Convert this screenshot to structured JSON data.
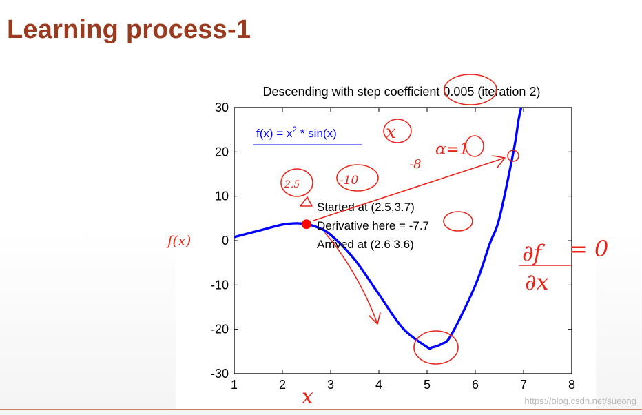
{
  "slide": {
    "title": "Learning process-1",
    "watermark": "https://blog.csdn.net/sueong"
  },
  "chart_data": {
    "type": "line",
    "title": "Descending with step coefficient 0.005 (iteration 2)",
    "xlim": [
      1,
      8
    ],
    "ylim": [
      -30,
      30
    ],
    "xticks": [
      1,
      2,
      3,
      4,
      5,
      6,
      7,
      8
    ],
    "yticks": [
      -30,
      -20,
      -10,
      0,
      10,
      20,
      30
    ],
    "grid": false,
    "series": [
      {
        "name": "f(x) = x² * sin(x)",
        "color": "#0000ff",
        "x": [
          1.0,
          1.5,
          2.0,
          2.3,
          2.5,
          2.7,
          3.0,
          3.5,
          4.0,
          4.5,
          5.0,
          5.1,
          5.3,
          5.5,
          6.0,
          6.3,
          6.5,
          6.8,
          6.9,
          7.0
        ],
        "y": [
          0.8,
          2.2,
          3.6,
          3.9,
          3.7,
          3.1,
          1.3,
          -4.3,
          -12.1,
          -19.8,
          -24.0,
          -24.1,
          -23.3,
          -21.3,
          -10.1,
          -0.7,
          5.1,
          20.5,
          27.4,
          32.2
        ]
      }
    ],
    "legend_text": {
      "prefix": "f(x) = x",
      "sup": "2",
      "suffix": " * sin(x)"
    },
    "point": {
      "x": 2.5,
      "y": 3.7,
      "color": "#ff0000"
    },
    "annotations": [
      "Started at (2.5,3.7)",
      "Derivative here = -7.7",
      "Arrived at (2.6 3.6)"
    ]
  },
  "handwriting": {
    "color": "#e8261c",
    "notes": [
      "f(x)",
      "x",
      "x",
      "2.5",
      "-10",
      "-8",
      "α=1",
      "∂f",
      "∂x",
      "= 0"
    ]
  }
}
